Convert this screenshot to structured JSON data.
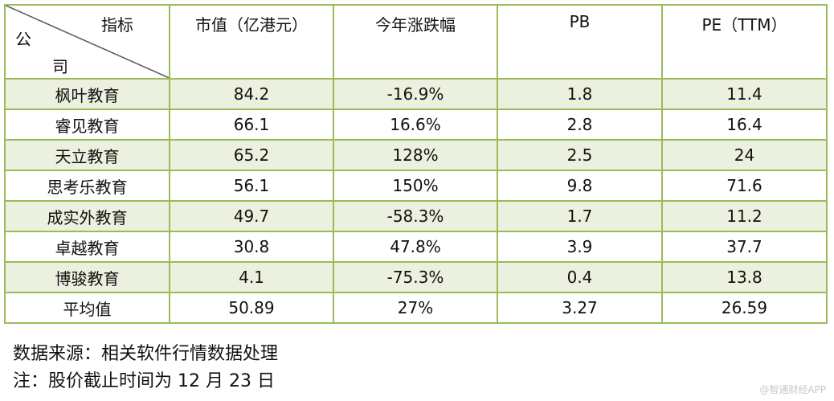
{
  "table": {
    "header": {
      "diag_top": "指标",
      "diag_left": "公",
      "diag_bottom": "司",
      "columns": [
        "市值（亿港元）",
        "今年涨跌幅",
        "PB",
        "PE（TTM）"
      ]
    },
    "rows": [
      {
        "name": "枫叶教育",
        "cap": "84.2",
        "change": "-16.9%",
        "pb": "1.8",
        "pe": "11.4"
      },
      {
        "name": "睿见教育",
        "cap": "66.1",
        "change": "16.6%",
        "pb": "2.8",
        "pe": "16.4"
      },
      {
        "name": "天立教育",
        "cap": "65.2",
        "change": "128%",
        "pb": "2.5",
        "pe": "24"
      },
      {
        "name": "思考乐教育",
        "cap": "56.1",
        "change": "150%",
        "pb": "9.8",
        "pe": "71.6"
      },
      {
        "name": "成实外教育",
        "cap": "49.7",
        "change": "-58.3%",
        "pb": "1.7",
        "pe": "11.2"
      },
      {
        "name": "卓越教育",
        "cap": "30.8",
        "change": "47.8%",
        "pb": "3.9",
        "pe": "37.7"
      },
      {
        "name": "博骏教育",
        "cap": "4.1",
        "change": "-75.3%",
        "pb": "0.4",
        "pe": "13.8"
      },
      {
        "name": "平均值",
        "cap": "50.89",
        "change": "27%",
        "pb": "3.27",
        "pe": "26.59"
      }
    ]
  },
  "notes": {
    "source": "数据来源：相关软件行情数据处理",
    "date_note": "注：股价截止时间为 12 月 23 日"
  },
  "watermark": "@智通财经APP",
  "colors": {
    "border": "#9bbb59",
    "shaded_row": "#ebf1de"
  }
}
